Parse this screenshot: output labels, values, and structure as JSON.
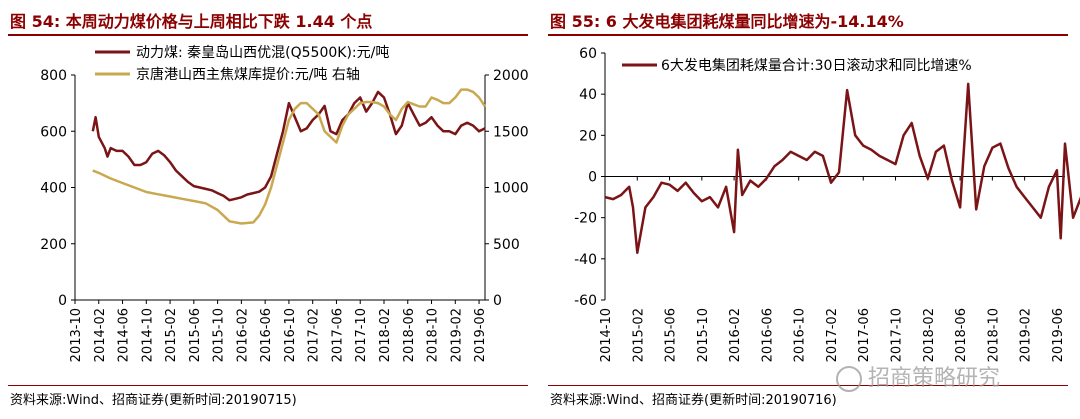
{
  "left": {
    "title": "图 54:  本周动力煤价格与上周相比下跌 1.44 个点",
    "source": "资料来源:Wind、招商证券(更新时间:20190715)"
  },
  "right": {
    "title": "图 55:  6 大发电集团耗煤量同比增速为-14.14%",
    "source": "资料来源:Wind、招商证券(更新时间:20190716)"
  },
  "watermark": "招商策略研究",
  "colors": {
    "dark_red": "#7b1416",
    "gold": "#c9a850",
    "title_red": "#8b0000"
  },
  "chart_data": [
    {
      "type": "line",
      "legend_placement": "top-left",
      "x_tick_labels": [
        "2013-10",
        "2014-02",
        "2014-06",
        "2014-10",
        "2015-02",
        "2015-06",
        "2015-10",
        "2016-02",
        "2016-06",
        "2016-10",
        "2017-02",
        "2017-06",
        "2017-10",
        "2018-02",
        "2018-06",
        "2018-10",
        "2019-02",
        "2019-06"
      ],
      "y_left_ticks": [
        "0",
        "200",
        "400",
        "600",
        "800"
      ],
      "y_right_ticks": [
        "0",
        "500",
        "1000",
        "1500",
        "2000"
      ],
      "y_left_range": [
        0,
        800
      ],
      "y_right_range": [
        0,
        2000
      ],
      "x_range": [
        "2013-10",
        "2019-07"
      ],
      "series": [
        {
          "name": "动力煤: 秦皇岛山西优混(Q5500K):元/吨",
          "axis": "left",
          "color": "#7b1416",
          "points": [
            [
              "2014-01",
              600
            ],
            [
              "2014-01-15",
              650
            ],
            [
              "2014-02",
              580
            ],
            [
              "2014-03",
              540
            ],
            [
              "2014-03-15",
              510
            ],
            [
              "2014-04",
              540
            ],
            [
              "2014-05",
              530
            ],
            [
              "2014-06",
              530
            ],
            [
              "2014-07",
              510
            ],
            [
              "2014-08",
              480
            ],
            [
              "2014-09",
              480
            ],
            [
              "2014-10",
              490
            ],
            [
              "2014-11",
              520
            ],
            [
              "2014-12",
              530
            ],
            [
              "2015-01",
              515
            ],
            [
              "2015-02",
              490
            ],
            [
              "2015-03",
              460
            ],
            [
              "2015-04",
              440
            ],
            [
              "2015-05",
              420
            ],
            [
              "2015-06",
              405
            ],
            [
              "2015-07",
              400
            ],
            [
              "2015-08",
              395
            ],
            [
              "2015-09",
              390
            ],
            [
              "2015-10",
              380
            ],
            [
              "2015-11",
              370
            ],
            [
              "2015-12",
              355
            ],
            [
              "2016-01",
              360
            ],
            [
              "2016-02",
              365
            ],
            [
              "2016-03",
              375
            ],
            [
              "2016-04",
              380
            ],
            [
              "2016-05",
              385
            ],
            [
              "2016-06",
              400
            ],
            [
              "2016-07",
              440
            ],
            [
              "2016-08",
              520
            ],
            [
              "2016-09",
              600
            ],
            [
              "2016-10",
              700
            ],
            [
              "2016-11",
              650
            ],
            [
              "2016-12",
              600
            ],
            [
              "2017-01",
              610
            ],
            [
              "2017-02",
              640
            ],
            [
              "2017-03",
              660
            ],
            [
              "2017-04",
              690
            ],
            [
              "2017-05",
              600
            ],
            [
              "2017-06",
              590
            ],
            [
              "2017-07",
              640
            ],
            [
              "2017-08",
              660
            ],
            [
              "2017-09",
              700
            ],
            [
              "2017-10",
              720
            ],
            [
              "2017-11",
              670
            ],
            [
              "2017-12",
              700
            ],
            [
              "2018-01",
              740
            ],
            [
              "2018-02",
              720
            ],
            [
              "2018-03",
              660
            ],
            [
              "2018-04",
              590
            ],
            [
              "2018-05",
              620
            ],
            [
              "2018-06",
              700
            ],
            [
              "2018-07",
              660
            ],
            [
              "2018-08",
              620
            ],
            [
              "2018-09",
              630
            ],
            [
              "2018-10",
              650
            ],
            [
              "2018-11",
              620
            ],
            [
              "2018-12",
              600
            ],
            [
              "2019-01",
              600
            ],
            [
              "2019-02",
              590
            ],
            [
              "2019-03",
              620
            ],
            [
              "2019-04",
              630
            ],
            [
              "2019-05",
              620
            ],
            [
              "2019-06",
              600
            ],
            [
              "2019-07",
              610
            ]
          ]
        },
        {
          "name": "京唐港山西主焦煤库提价:元/吨 右轴",
          "axis": "right",
          "color": "#c9a850",
          "points": [
            [
              "2014-01",
              1150
            ],
            [
              "2014-02",
              1130
            ],
            [
              "2014-04",
              1080
            ],
            [
              "2014-06",
              1040
            ],
            [
              "2014-08",
              1000
            ],
            [
              "2014-10",
              960
            ],
            [
              "2014-12",
              940
            ],
            [
              "2015-02",
              920
            ],
            [
              "2015-04",
              900
            ],
            [
              "2015-06",
              880
            ],
            [
              "2015-08",
              860
            ],
            [
              "2015-10",
              800
            ],
            [
              "2015-12",
              700
            ],
            [
              "2016-02",
              680
            ],
            [
              "2016-04",
              690
            ],
            [
              "2016-05",
              750
            ],
            [
              "2016-06",
              850
            ],
            [
              "2016-07",
              1000
            ],
            [
              "2016-08",
              1200
            ],
            [
              "2016-09",
              1400
            ],
            [
              "2016-10",
              1600
            ],
            [
              "2016-11",
              1700
            ],
            [
              "2016-12",
              1750
            ],
            [
              "2017-01",
              1750
            ],
            [
              "2017-02",
              1700
            ],
            [
              "2017-03",
              1650
            ],
            [
              "2017-04",
              1500
            ],
            [
              "2017-05",
              1450
            ],
            [
              "2017-06",
              1400
            ],
            [
              "2017-07",
              1550
            ],
            [
              "2017-08",
              1650
            ],
            [
              "2017-09",
              1700
            ],
            [
              "2017-10",
              1750
            ],
            [
              "2017-11",
              1760
            ],
            [
              "2017-12",
              1760
            ],
            [
              "2018-01",
              1750
            ],
            [
              "2018-02",
              1720
            ],
            [
              "2018-03",
              1650
            ],
            [
              "2018-04",
              1600
            ],
            [
              "2018-05",
              1700
            ],
            [
              "2018-06",
              1760
            ],
            [
              "2018-07",
              1740
            ],
            [
              "2018-08",
              1720
            ],
            [
              "2018-09",
              1720
            ],
            [
              "2018-10",
              1800
            ],
            [
              "2018-11",
              1780
            ],
            [
              "2018-12",
              1750
            ],
            [
              "2019-01",
              1750
            ],
            [
              "2019-02",
              1800
            ],
            [
              "2019-03",
              1870
            ],
            [
              "2019-04",
              1870
            ],
            [
              "2019-05",
              1850
            ],
            [
              "2019-06",
              1800
            ],
            [
              "2019-07",
              1720
            ]
          ]
        }
      ]
    },
    {
      "type": "line",
      "legend_placement": "top",
      "x_tick_labels": [
        "2014-10",
        "2015-02",
        "2015-06",
        "2015-10",
        "2016-02",
        "2016-06",
        "2016-10",
        "2017-02",
        "2017-06",
        "2017-10",
        "2018-02",
        "2018-06",
        "2018-10",
        "2019-02",
        "2019-06"
      ],
      "y_ticks": [
        "-60",
        "-40",
        "-20",
        "0",
        "20",
        "40",
        "60"
      ],
      "y_range": [
        -60,
        60
      ],
      "x_range": [
        "2014-10",
        "2019-07"
      ],
      "series": [
        {
          "name": "6大发电集团耗煤量合计:30日滚动求和同比增速%",
          "color": "#7b1416",
          "points": [
            [
              "2014-10",
              -10
            ],
            [
              "2014-11",
              -11
            ],
            [
              "2014-12",
              -9
            ],
            [
              "2015-01",
              -5
            ],
            [
              "2015-01-15",
              -15
            ],
            [
              "2015-02",
              -37
            ],
            [
              "2015-03",
              -15
            ],
            [
              "2015-04",
              -10
            ],
            [
              "2015-05",
              -3
            ],
            [
              "2015-06",
              -4
            ],
            [
              "2015-07",
              -7
            ],
            [
              "2015-08",
              -3
            ],
            [
              "2015-09",
              -8
            ],
            [
              "2015-10",
              -12
            ],
            [
              "2015-11",
              -10
            ],
            [
              "2015-12",
              -15
            ],
            [
              "2016-01",
              -5
            ],
            [
              "2016-02",
              -27
            ],
            [
              "2016-02-15",
              13
            ],
            [
              "2016-03",
              -9
            ],
            [
              "2016-04",
              -2
            ],
            [
              "2016-05",
              -5
            ],
            [
              "2016-06",
              -1
            ],
            [
              "2016-07",
              5
            ],
            [
              "2016-08",
              8
            ],
            [
              "2016-09",
              12
            ],
            [
              "2016-10",
              10
            ],
            [
              "2016-11",
              8
            ],
            [
              "2016-12",
              12
            ],
            [
              "2017-01",
              10
            ],
            [
              "2017-02",
              -3
            ],
            [
              "2017-03",
              2
            ],
            [
              "2017-04",
              42
            ],
            [
              "2017-05",
              20
            ],
            [
              "2017-06",
              15
            ],
            [
              "2017-07",
              13
            ],
            [
              "2017-08",
              10
            ],
            [
              "2017-09",
              8
            ],
            [
              "2017-10",
              6
            ],
            [
              "2017-11",
              20
            ],
            [
              "2017-12",
              26
            ],
            [
              "2018-01",
              10
            ],
            [
              "2018-02",
              -1
            ],
            [
              "2018-03",
              12
            ],
            [
              "2018-04",
              15
            ],
            [
              "2018-05",
              -2
            ],
            [
              "2018-06",
              -15
            ],
            [
              "2018-07",
              45
            ],
            [
              "2018-08",
              -16
            ],
            [
              "2018-09",
              5
            ],
            [
              "2018-10",
              14
            ],
            [
              "2018-11",
              16
            ],
            [
              "2018-12",
              4
            ],
            [
              "2019-01",
              -5
            ],
            [
              "2019-02",
              -10
            ],
            [
              "2019-03",
              -15
            ],
            [
              "2019-04",
              -20
            ],
            [
              "2019-05",
              -5
            ],
            [
              "2019-06",
              3
            ],
            [
              "2019-06-15",
              -30
            ],
            [
              "2019-07",
              16
            ],
            [
              "2019-08",
              -20
            ],
            [
              "2019-09",
              -10
            ],
            [
              "2019-10",
              -14
            ]
          ]
        }
      ]
    }
  ]
}
